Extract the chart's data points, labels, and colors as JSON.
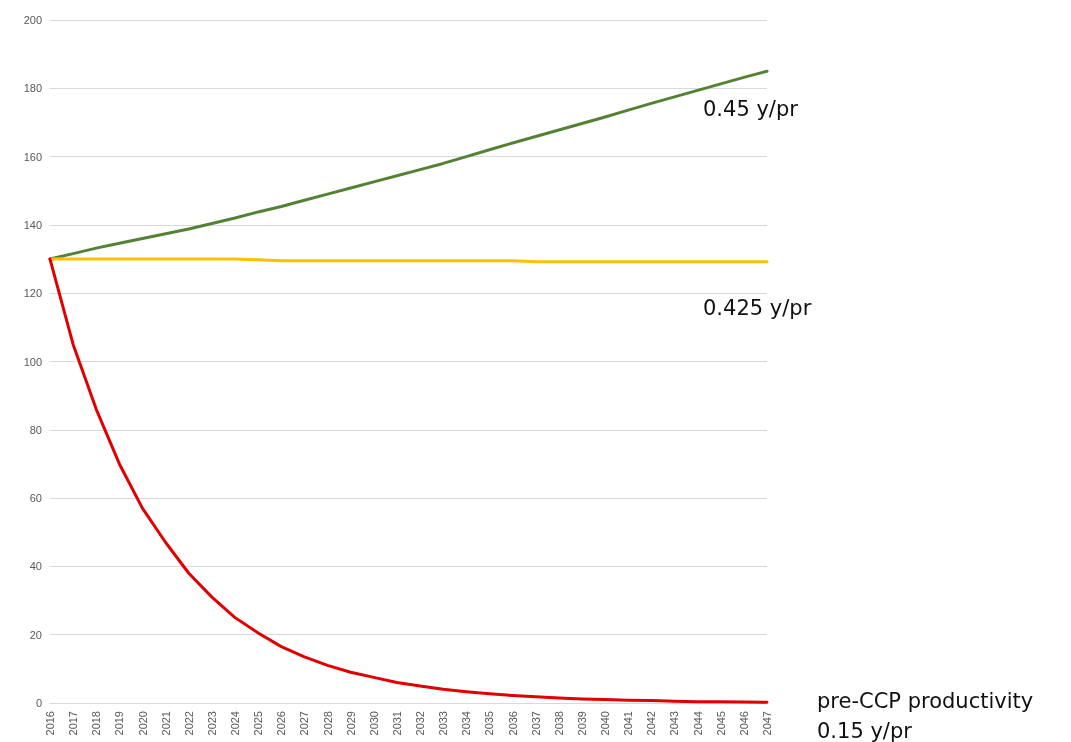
{
  "chart_data": {
    "type": "line",
    "categories": [
      "2016",
      "2017",
      "2018",
      "2019",
      "2020",
      "2021",
      "2022",
      "2023",
      "2024",
      "2025",
      "2026",
      "2027",
      "2028",
      "2029",
      "2030",
      "2031",
      "2032",
      "2033",
      "2034",
      "2035",
      "2036",
      "2037",
      "2038",
      "2039",
      "2040",
      "2041",
      "2042",
      "2043",
      "2044",
      "2045",
      "2046",
      "2047"
    ],
    "ylim": [
      0,
      200
    ],
    "yticks": [
      0,
      20,
      40,
      60,
      80,
      100,
      120,
      140,
      160,
      180,
      200
    ],
    "grid": "y",
    "legend": false,
    "marker": "none",
    "line_style": "solid",
    "series": [
      {
        "name": "0.45 y/pr",
        "color": "#548235",
        "values": [
          130,
          131.6,
          133.2,
          134.6,
          136,
          137.4,
          138.8,
          140.4,
          142,
          143.8,
          145.4,
          147.2,
          149,
          150.8,
          152.6,
          154.4,
          156.2,
          158,
          160,
          162,
          164,
          165.9,
          167.8,
          169.7,
          171.6,
          173.6,
          175.6,
          177.5,
          179.4,
          181.3,
          183.2,
          185
        ]
      },
      {
        "name": "0.425 y/pr",
        "color": "#ffc000",
        "values": [
          130,
          130,
          130,
          130,
          130,
          130,
          130,
          130,
          130,
          129.8,
          129.5,
          129.5,
          129.5,
          129.5,
          129.5,
          129.5,
          129.5,
          129.5,
          129.5,
          129.5,
          129.5,
          129.2,
          129.2,
          129.2,
          129.2,
          129.2,
          129.2,
          129.2,
          129.2,
          129.2,
          129.2,
          129.2
        ]
      },
      {
        "name": "pre-CCP productivity 0.15 y/pr",
        "color": "#e00000",
        "values": [
          130,
          105,
          86,
          70,
          57,
          47,
          38,
          31,
          25,
          20.5,
          16.5,
          13.5,
          11,
          9,
          7.5,
          6,
          5,
          4,
          3.3,
          2.7,
          2.2,
          1.8,
          1.5,
          1.2,
          1,
          0.8,
          0.7,
          0.5,
          0.4,
          0.4,
          0.3,
          0.2
        ]
      }
    ]
  }
}
